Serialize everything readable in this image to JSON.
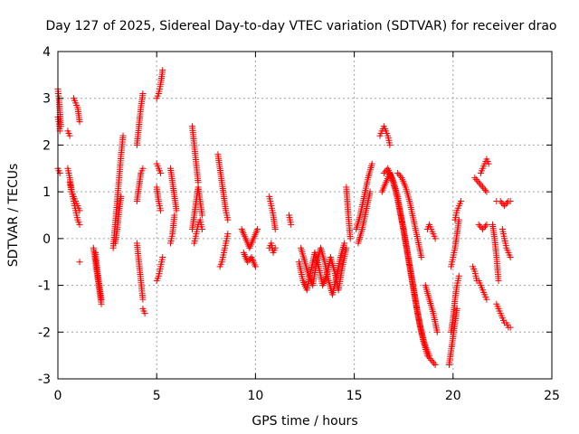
{
  "chart_data": {
    "type": "scatter",
    "title": "Day 127 of 2025, Sidereal Day-to-day VTEC variation (SDTVAR) for receiver drao",
    "xlabel": "GPS time / hours",
    "ylabel": "SDTVAR / TECUs",
    "xlim": [
      0,
      25
    ],
    "ylim": [
      -3,
      4
    ],
    "x_ticks": [
      0,
      5,
      10,
      15,
      20,
      25
    ],
    "x_tick_labels": [
      "0",
      "5",
      "10",
      "15",
      "20",
      "25"
    ],
    "y_ticks": [
      -3,
      -2,
      -1,
      0,
      1,
      2,
      3,
      4
    ],
    "y_tick_labels": [
      "-3",
      "-2",
      "-1",
      "0",
      "1",
      "2",
      "3",
      "4"
    ],
    "grid": true,
    "marker": "+",
    "color": "#ff0000",
    "series": [
      {
        "name": "s1",
        "x": [
          0.0,
          0.05,
          0.1,
          0.15
        ],
        "y": [
          3.2,
          3.0,
          2.7,
          2.4
        ]
      },
      {
        "name": "s2",
        "x": [
          0.0,
          0.05,
          0.1
        ],
        "y": [
          2.6,
          2.5,
          2.3
        ]
      },
      {
        "name": "s3",
        "x": [
          0.0,
          0.05,
          0.1
        ],
        "y": [
          1.5,
          1.45,
          1.4
        ]
      },
      {
        "name": "s4",
        "x": [
          0.5,
          0.6,
          0.7,
          0.8,
          0.9,
          1.0,
          1.1
        ],
        "y": [
          1.5,
          1.3,
          1.0,
          0.8,
          0.6,
          0.4,
          0.3
        ]
      },
      {
        "name": "s5",
        "x": [
          0.6,
          0.7,
          0.8,
          0.9,
          1.0,
          1.1
        ],
        "y": [
          1.2,
          1.0,
          0.9,
          0.8,
          0.7,
          0.6
        ]
      },
      {
        "name": "s6",
        "x": [
          0.5,
          0.6
        ],
        "y": [
          2.3,
          2.2
        ]
      },
      {
        "name": "s7",
        "x": [
          0.8,
          0.9,
          1.0,
          1.1
        ],
        "y": [
          3.0,
          2.9,
          2.8,
          2.5
        ]
      },
      {
        "name": "s8",
        "x": [
          1.1
        ],
        "y": [
          -0.5
        ]
      },
      {
        "name": "s9",
        "x": [
          1.8,
          1.9,
          2.0,
          2.1,
          2.2
        ],
        "y": [
          -0.2,
          -0.5,
          -0.8,
          -1.1,
          -1.4
        ]
      },
      {
        "name": "s10",
        "x": [
          1.9,
          2.0,
          2.1,
          2.2
        ],
        "y": [
          -0.3,
          -0.7,
          -1.0,
          -1.3
        ]
      },
      {
        "name": "s11",
        "x": [
          2.8,
          2.9,
          3.0,
          3.1,
          3.2,
          3.3
        ],
        "y": [
          -0.2,
          0.3,
          0.8,
          1.3,
          1.8,
          2.2
        ]
      },
      {
        "name": "s12",
        "x": [
          2.9,
          3.0,
          3.1,
          3.2
        ],
        "y": [
          -0.1,
          0.2,
          0.6,
          0.9
        ]
      },
      {
        "name": "s13",
        "x": [
          4.0,
          4.1,
          4.2,
          4.3
        ],
        "y": [
          2.0,
          2.4,
          2.8,
          3.1
        ]
      },
      {
        "name": "s14",
        "x": [
          4.0,
          4.1,
          4.2,
          4.3
        ],
        "y": [
          0.8,
          1.1,
          1.4,
          1.5
        ]
      },
      {
        "name": "s15",
        "x": [
          4.0,
          4.1,
          4.2,
          4.3
        ],
        "y": [
          -0.1,
          -0.5,
          -0.9,
          -1.3
        ]
      },
      {
        "name": "s16",
        "x": [
          4.3,
          4.4
        ],
        "y": [
          -1.5,
          -1.6
        ]
      },
      {
        "name": "s17",
        "x": [
          5.0,
          5.1,
          5.2,
          5.3
        ],
        "y": [
          3.0,
          3.1,
          3.3,
          3.6
        ]
      },
      {
        "name": "s18",
        "x": [
          5.0,
          5.1,
          5.2
        ],
        "y": [
          1.6,
          1.5,
          1.4
        ]
      },
      {
        "name": "s19",
        "x": [
          5.0,
          5.1,
          5.2
        ],
        "y": [
          1.1,
          0.8,
          0.6
        ]
      },
      {
        "name": "s20",
        "x": [
          5.0,
          5.1,
          5.2,
          5.3
        ],
        "y": [
          -0.9,
          -0.8,
          -0.6,
          -0.4
        ]
      },
      {
        "name": "s21",
        "x": [
          5.7,
          5.8,
          5.9,
          6.0
        ],
        "y": [
          1.5,
          1.2,
          0.9,
          0.6
        ]
      },
      {
        "name": "s22",
        "x": [
          5.7,
          5.8,
          5.9
        ],
        "y": [
          -0.1,
          0.1,
          0.5
        ]
      },
      {
        "name": "s23",
        "x": [
          6.8,
          6.9,
          7.0,
          7.1
        ],
        "y": [
          2.4,
          2.0,
          1.6,
          1.2
        ]
      },
      {
        "name": "s24",
        "x": [
          6.8,
          6.9,
          7.0,
          7.1,
          7.2,
          7.3
        ],
        "y": [
          0.2,
          0.5,
          0.8,
          1.1,
          0.8,
          0.5
        ]
      },
      {
        "name": "s25",
        "x": [
          6.9,
          7.0,
          7.1,
          7.2,
          7.3
        ],
        "y": [
          -0.1,
          0.1,
          0.3,
          0.4,
          0.2
        ]
      },
      {
        "name": "s26",
        "x": [
          8.1,
          8.2,
          8.3,
          8.4,
          8.5,
          8.6
        ],
        "y": [
          1.8,
          1.5,
          1.2,
          0.9,
          0.6,
          0.4
        ]
      },
      {
        "name": "s27",
        "x": [
          8.2,
          8.3,
          8.4,
          8.5,
          8.6
        ],
        "y": [
          -0.6,
          -0.5,
          -0.3,
          -0.1,
          0.1
        ]
      },
      {
        "name": "s28",
        "x": [
          9.3,
          9.5,
          9.7,
          9.9,
          10.1
        ],
        "y": [
          0.2,
          0.0,
          -0.2,
          0.0,
          0.2
        ]
      },
      {
        "name": "s29",
        "x": [
          9.4,
          9.6,
          9.8,
          10.0
        ],
        "y": [
          -0.3,
          -0.5,
          -0.4,
          -0.6
        ]
      },
      {
        "name": "s30",
        "x": [
          10.7,
          10.8,
          10.9,
          11.0
        ],
        "y": [
          0.9,
          0.7,
          0.5,
          0.2
        ]
      },
      {
        "name": "s31",
        "x": [
          10.7,
          10.8,
          10.9,
          11.0
        ],
        "y": [
          -0.2,
          -0.1,
          -0.3,
          -0.2
        ]
      },
      {
        "name": "s32",
        "x": [
          11.7,
          11.8
        ],
        "y": [
          0.5,
          0.3
        ]
      },
      {
        "name": "s33",
        "x": [
          12.2,
          12.4,
          12.6,
          12.8,
          13.0,
          13.2,
          13.4,
          13.6,
          13.8,
          14.0,
          14.2,
          14.4,
          14.6
        ],
        "y": [
          -0.5,
          -0.9,
          -1.1,
          -0.7,
          -0.3,
          -0.6,
          -1.0,
          -0.8,
          -0.4,
          -0.7,
          -1.1,
          -0.6,
          -0.2
        ]
      },
      {
        "name": "s34",
        "x": [
          12.3,
          12.5,
          12.7,
          12.9,
          13.1,
          13.3,
          13.5,
          13.7,
          13.9,
          14.1,
          14.3,
          14.5
        ],
        "y": [
          -0.2,
          -0.5,
          -0.8,
          -1.0,
          -0.5,
          -0.2,
          -0.5,
          -0.9,
          -1.2,
          -0.8,
          -0.4,
          -0.1
        ]
      },
      {
        "name": "s35",
        "x": [
          14.6,
          14.7,
          14.8
        ],
        "y": [
          1.1,
          0.5,
          0.0
        ]
      },
      {
        "name": "s36",
        "x": [
          15.1,
          15.3,
          15.5,
          15.7,
          15.9
        ],
        "y": [
          0.2,
          0.5,
          0.9,
          1.3,
          1.6
        ]
      },
      {
        "name": "s37",
        "x": [
          15.2,
          15.4,
          15.6,
          15.8
        ],
        "y": [
          -0.1,
          0.2,
          0.6,
          1.0
        ]
      },
      {
        "name": "s38",
        "x": [
          16.3,
          16.4,
          16.5,
          16.6,
          16.7,
          16.8
        ],
        "y": [
          2.2,
          2.3,
          2.4,
          2.3,
          2.2,
          2.0
        ]
      },
      {
        "name": "s39",
        "x": [
          16.5,
          16.7,
          16.9,
          17.1,
          17.3,
          17.5,
          17.7,
          17.9,
          18.1,
          18.3,
          18.5,
          18.7,
          18.9,
          19.1
        ],
        "y": [
          1.4,
          1.5,
          1.3,
          1.0,
          0.6,
          0.2,
          -0.3,
          -0.8,
          -1.3,
          -1.8,
          -2.2,
          -2.5,
          -2.6,
          -2.7
        ]
      },
      {
        "name": "s40",
        "x": [
          16.4,
          16.6,
          16.8,
          17.0,
          17.2,
          17.4,
          17.6,
          17.8,
          18.0,
          18.2,
          18.4,
          18.6,
          18.8
        ],
        "y": [
          1.0,
          1.2,
          1.4,
          1.2,
          0.9,
          0.4,
          -0.1,
          -0.6,
          -1.1,
          -1.6,
          -2.0,
          -2.3,
          -2.5
        ]
      },
      {
        "name": "s41",
        "x": [
          17.2,
          17.4,
          17.6,
          17.8,
          18.0,
          18.2,
          18.4
        ],
        "y": [
          1.4,
          1.3,
          1.1,
          0.8,
          0.4,
          0.0,
          -0.4
        ]
      },
      {
        "name": "s42",
        "x": [
          18.7,
          18.8,
          18.9,
          19.0,
          19.1
        ],
        "y": [
          0.2,
          0.3,
          0.2,
          0.1,
          0.0
        ]
      },
      {
        "name": "s43",
        "x": [
          18.6,
          18.8,
          19.0,
          19.2
        ],
        "y": [
          -1.0,
          -1.3,
          -1.6,
          -2.0
        ]
      },
      {
        "name": "s44",
        "x": [
          19.8,
          19.9,
          20.0,
          20.1,
          20.2
        ],
        "y": [
          -2.7,
          -2.4,
          -2.1,
          -1.8,
          -1.5
        ]
      },
      {
        "name": "s45",
        "x": [
          19.9,
          20.0,
          20.1,
          20.2,
          20.3
        ],
        "y": [
          -2.0,
          -1.7,
          -1.3,
          -1.0,
          -0.8
        ]
      },
      {
        "name": "s46",
        "x": [
          19.9,
          20.0,
          20.1,
          20.2,
          20.3
        ],
        "y": [
          -0.6,
          -0.4,
          -0.2,
          0.1,
          0.4
        ]
      },
      {
        "name": "s47",
        "x": [
          20.1,
          20.2,
          20.3,
          20.4
        ],
        "y": [
          0.4,
          0.6,
          0.7,
          0.8
        ]
      },
      {
        "name": "s48",
        "x": [
          21.0,
          21.1,
          21.2
        ],
        "y": [
          -0.6,
          -0.7,
          -0.9
        ]
      },
      {
        "name": "s49",
        "x": [
          21.1,
          21.3,
          21.5,
          21.7
        ],
        "y": [
          1.3,
          1.2,
          1.1,
          1.0
        ]
      },
      {
        "name": "s50",
        "x": [
          21.4,
          21.5,
          21.6,
          21.7,
          21.8
        ],
        "y": [
          1.4,
          1.5,
          1.6,
          1.7,
          1.6
        ]
      },
      {
        "name": "s51",
        "x": [
          21.3,
          21.5,
          21.7
        ],
        "y": [
          0.3,
          0.2,
          0.3
        ]
      },
      {
        "name": "s52",
        "x": [
          21.3,
          21.4,
          21.5,
          21.6,
          21.7
        ],
        "y": [
          -0.9,
          -1.0,
          -1.1,
          -1.2,
          -1.3
        ]
      },
      {
        "name": "s53",
        "x": [
          22.0,
          22.1,
          22.2,
          22.3
        ],
        "y": [
          0.3,
          0.0,
          -0.4,
          -0.9
        ]
      },
      {
        "name": "s54",
        "x": [
          22.2,
          22.3,
          22.4,
          22.5,
          22.6,
          22.7,
          22.8,
          22.9
        ],
        "y": [
          -1.4,
          -1.5,
          -1.6,
          -1.7,
          -1.8,
          -1.8,
          -1.9,
          -1.9
        ]
      },
      {
        "name": "s55",
        "x": [
          22.2,
          22.4,
          22.6,
          22.8,
          22.9
        ],
        "y": [
          0.8,
          0.8,
          0.7,
          0.8,
          0.8
        ]
      },
      {
        "name": "s56",
        "x": [
          22.5,
          22.6,
          22.7,
          22.8,
          22.9
        ],
        "y": [
          0.2,
          0.0,
          -0.2,
          -0.3,
          -0.4
        ]
      }
    ]
  }
}
